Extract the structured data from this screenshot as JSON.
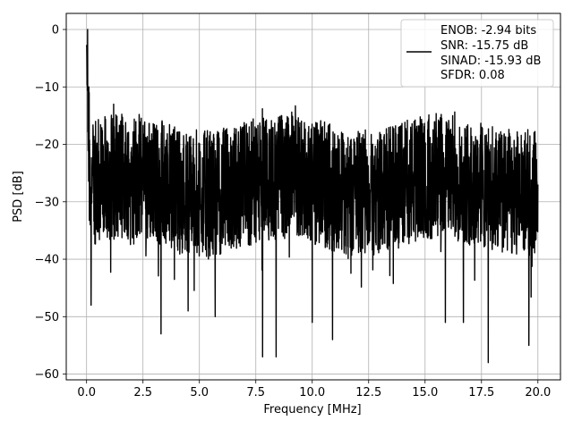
{
  "chart_data": {
    "type": "line",
    "title": "",
    "xlabel": "Frequency [MHz]",
    "ylabel": "PSD [dB]",
    "xlim": [
      -0.9,
      21.0
    ],
    "ylim": [
      -61.0,
      2.8
    ],
    "xticks": [
      0.0,
      2.5,
      5.0,
      7.5,
      10.0,
      12.5,
      15.0,
      17.5,
      20.0
    ],
    "xtick_labels": [
      "0.0",
      "2.5",
      "5.0",
      "7.5",
      "10.0",
      "12.5",
      "15.0",
      "17.5",
      "20.0"
    ],
    "yticks": [
      0,
      -10,
      -20,
      -30,
      -40,
      -50,
      -60
    ],
    "ytick_labels": [
      "0",
      "−10",
      "−20",
      "−30",
      "−40",
      "−50",
      "−60"
    ],
    "grid": true,
    "legend_position": "top-right",
    "series": [
      {
        "color": "#000000",
        "x_range": [
          0.0,
          20.0
        ],
        "description_points": [
          {
            "x": 0.0,
            "y": -3
          },
          {
            "x": 0.05,
            "y": 0
          },
          {
            "x": 0.1,
            "y": -10
          },
          {
            "x": 0.2,
            "y": -48
          },
          {
            "x": 0.4,
            "y": -16
          },
          {
            "x": 1.2,
            "y": -13
          },
          {
            "x": 3.3,
            "y": -53
          },
          {
            "x": 4.5,
            "y": -49
          },
          {
            "x": 5.7,
            "y": -50
          },
          {
            "x": 7.8,
            "y": -57
          },
          {
            "x": 8.4,
            "y": -57
          },
          {
            "x": 10.0,
            "y": -51
          },
          {
            "x": 10.9,
            "y": -54
          },
          {
            "x": 15.9,
            "y": -51
          },
          {
            "x": 16.7,
            "y": -51
          },
          {
            "x": 17.8,
            "y": -58
          },
          {
            "x": 19.6,
            "y": -55
          },
          {
            "x": 20.0,
            "y": -27
          }
        ],
        "typical_upper_envelope": -16,
        "typical_lower_envelope": -40
      }
    ],
    "legend_text": [
      "ENOB: -2.94 bits",
      "SNR: -15.75 dB",
      "SINAD: -15.93 dB",
      "SFDR: 0.08"
    ]
  }
}
